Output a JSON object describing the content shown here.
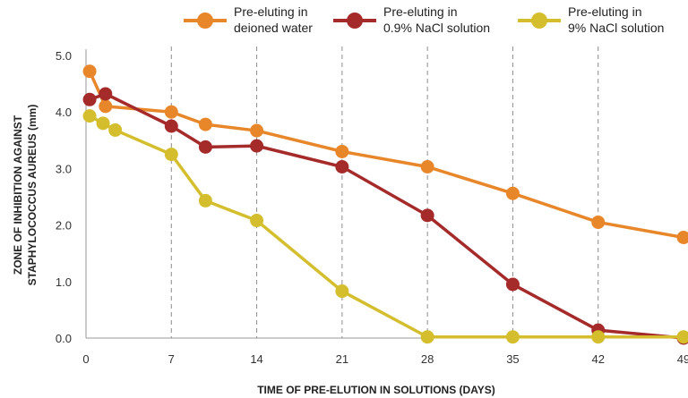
{
  "chart_data": {
    "type": "line",
    "xlabel": "TIME OF PRE-ELUTION IN SOLUTIONS (DAYS)",
    "ylabel_lines": [
      "ZONE OF INHIBITION AGAINST",
      "STAPHYLOCOCCUS AUREUS (mm)"
    ],
    "xlim": [
      0,
      49
    ],
    "ylim": [
      0,
      5
    ],
    "xticks": [
      0,
      7,
      14,
      21,
      28,
      35,
      42,
      49
    ],
    "xtick_labels": [
      "0",
      "7",
      "14",
      "21",
      "28",
      "35",
      "42",
      "49"
    ],
    "yticks": [
      0,
      1,
      2,
      3,
      4,
      5
    ],
    "ytick_labels": [
      "0.0",
      "1.0",
      "2.0",
      "3.0",
      "4.0",
      "5.0"
    ],
    "vertical_dashed_grid_at": [
      7,
      14,
      21,
      28,
      35,
      42
    ],
    "legend_position": "top",
    "series": [
      {
        "name_lines": [
          "Pre-eluting in",
          "deioned water"
        ],
        "color": "#E8872A",
        "points": [
          [
            0.3,
            4.72
          ],
          [
            1.6,
            4.1
          ],
          [
            7,
            4.0
          ],
          [
            9.8,
            3.78
          ],
          [
            14,
            3.67
          ],
          [
            21,
            3.3
          ],
          [
            28,
            3.03
          ],
          [
            35,
            2.56
          ],
          [
            42,
            2.05
          ],
          [
            49,
            1.78
          ]
        ]
      },
      {
        "name_lines": [
          "Pre-eluting in",
          "0.9% NaCl solution"
        ],
        "color": "#A52A2A",
        "points": [
          [
            0.3,
            4.22
          ],
          [
            1.6,
            4.32
          ],
          [
            7,
            3.75
          ],
          [
            9.8,
            3.38
          ],
          [
            14,
            3.4
          ],
          [
            21,
            3.03
          ],
          [
            28,
            2.17
          ],
          [
            35,
            0.95
          ],
          [
            42,
            0.14
          ],
          [
            49,
            0.0
          ]
        ]
      },
      {
        "name_lines": [
          "Pre-eluting in",
          "9% NaCl solution"
        ],
        "color": "#D4BE2E",
        "points": [
          [
            0.3,
            3.93
          ],
          [
            1.4,
            3.8
          ],
          [
            2.4,
            3.68
          ],
          [
            7,
            3.25
          ],
          [
            9.8,
            2.43
          ],
          [
            14,
            2.08
          ],
          [
            21,
            0.83
          ],
          [
            28,
            0.02
          ],
          [
            35,
            0.02
          ],
          [
            42,
            0.02
          ],
          [
            49,
            0.02
          ]
        ]
      }
    ]
  }
}
